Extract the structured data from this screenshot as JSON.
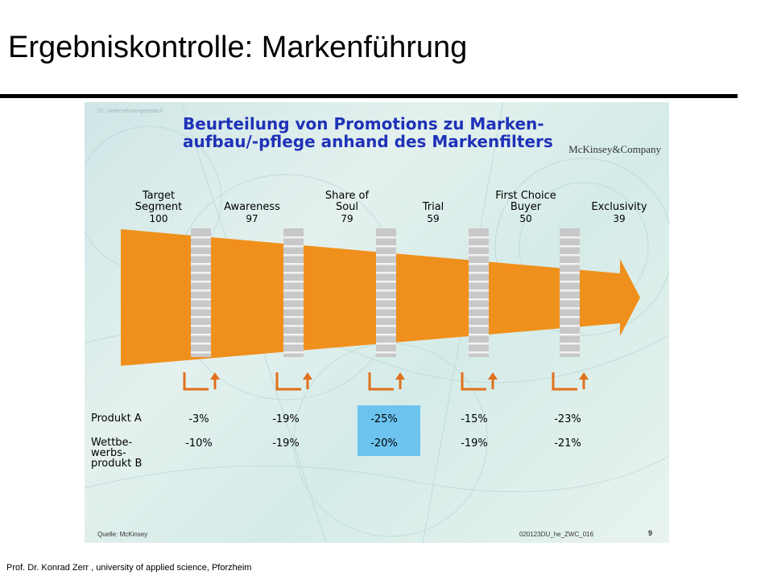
{
  "page": {
    "title": "Ergebniskontrolle: Markenführung",
    "footer": "Prof. Dr. Konrad Zerr , university of applied science, Pforzheim"
  },
  "slide": {
    "corner_label": "21. Unternehmergespräch",
    "headline_line1": "Beurteilung von Promotions zu Marken-",
    "headline_line2": "aufbau/-pflege anhand des Markenfilters",
    "brand": "McKinsey&Company",
    "source": "Quelle: McKinsey",
    "doc_id": "020123DU_he_ZWC_016",
    "page_number": "9"
  },
  "stages": [
    {
      "line1": "Target",
      "line2": "Segment",
      "value": "100"
    },
    {
      "line1": "",
      "line2": "Awareness",
      "value": "97"
    },
    {
      "line1": "Share of",
      "line2": "Soul",
      "value": "79"
    },
    {
      "line1": "",
      "line2": "Trial",
      "value": "59"
    },
    {
      "line1": "First Choice",
      "line2": "Buyer",
      "value": "50"
    },
    {
      "line1": "",
      "line2": "Exclusivity",
      "value": "39"
    }
  ],
  "table": {
    "rows": [
      {
        "label": "Produkt A",
        "values": [
          "-3%",
          "-19%",
          "-25%",
          "-15%",
          "-23%"
        ]
      },
      {
        "label_lines": [
          "Wettbe-",
          "werbs-",
          "produkt B"
        ],
        "values": [
          "-10%",
          "-19%",
          "-20%",
          "-19%",
          "-21%"
        ]
      }
    ],
    "highlight_column": 2
  },
  "colors": {
    "funnel": "#f0901c",
    "filter": "#c8c8c8",
    "headline": "#1f32b8",
    "highlight": "#6cc3ee"
  }
}
